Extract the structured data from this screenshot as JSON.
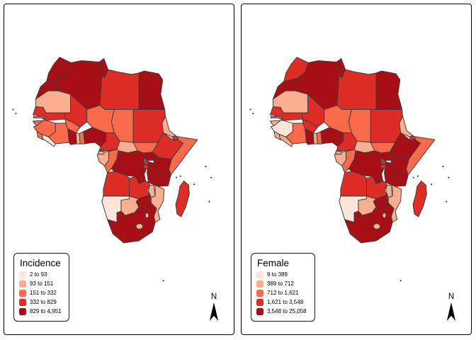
{
  "north_label": "N",
  "chart_data": {
    "type": "choropleth",
    "region": "Africa",
    "palette": [
      "#FEE5D9",
      "#FCAE91",
      "#FB6A4A",
      "#DE2D26",
      "#A50F15"
    ],
    "border_color": "#3d3d3d",
    "panels": [
      {
        "title": "Incidence",
        "breaks": [
          "2 to 93",
          "93 to 151",
          "151 to 332",
          "332 to 829",
          "829 to 4,951"
        ],
        "values_by_country": {
          "morocco": 5,
          "western_sahara": 5,
          "algeria": 5,
          "tunisia": 5,
          "libya": 4,
          "egypt": 5,
          "mauritania": 2,
          "mali": 4,
          "niger": 3,
          "chad": 3,
          "sudan": 4,
          "eritrea": 2,
          "djibouti": 4,
          "ethiopia": 4,
          "somalia": 3,
          "south_sudan": 3,
          "senegal": 4,
          "gambia": 3,
          "guinea_bissau": 3,
          "guinea": 3,
          "sierra_leone": 3,
          "liberia": 1,
          "cote_divoire": 3,
          "burkina_faso": 3,
          "ghana": 5,
          "togo": 2,
          "benin": 3,
          "nigeria": 5,
          "cameroon": 4,
          "car": 2,
          "gabon": 2,
          "congo": 3,
          "eq_guinea": 2,
          "drc": 5,
          "uganda": 5,
          "kenya": 5,
          "tanzania": 5,
          "rwanda": 4,
          "burundi": 4,
          "angola": 4,
          "zambia": 4,
          "malawi": 2,
          "mozambique": 2,
          "zimbabwe": 5,
          "botswana": 2,
          "namibia": 1,
          "south_africa": 5,
          "lesotho": 2,
          "eswatini": 2,
          "madagascar": 4
        }
      },
      {
        "title": "Female",
        "breaks": [
          "9 to 389",
          "389 to 712",
          "712 to 1,621",
          "1,621 to 3,548",
          "3,548 to 25,058"
        ],
        "values_by_country": {
          "morocco": 4,
          "western_sahara": 5,
          "algeria": 5,
          "tunisia": 5,
          "libya": 4,
          "egypt": 5,
          "mauritania": 2,
          "mali": 4,
          "niger": 3,
          "chad": 3,
          "sudan": 4,
          "eritrea": 2,
          "djibouti": 4,
          "ethiopia": 5,
          "somalia": 3,
          "south_sudan": 3,
          "senegal": 4,
          "gambia": 3,
          "guinea_bissau": 2,
          "guinea": 1,
          "sierra_leone": 2,
          "liberia": 2,
          "cote_divoire": 3,
          "burkina_faso": 4,
          "ghana": 5,
          "togo": 2,
          "benin": 3,
          "nigeria": 5,
          "cameroon": 4,
          "car": 2,
          "gabon": 2,
          "congo": 3,
          "eq_guinea": 2,
          "drc": 5,
          "uganda": 5,
          "kenya": 5,
          "tanzania": 5,
          "rwanda": 4,
          "burundi": 4,
          "angola": 4,
          "zambia": 4,
          "malawi": 2,
          "mozambique": 2,
          "zimbabwe": 5,
          "botswana": 2,
          "namibia": 1,
          "south_africa": 5,
          "lesotho": 2,
          "eswatini": 2,
          "madagascar": 4
        }
      }
    ]
  }
}
